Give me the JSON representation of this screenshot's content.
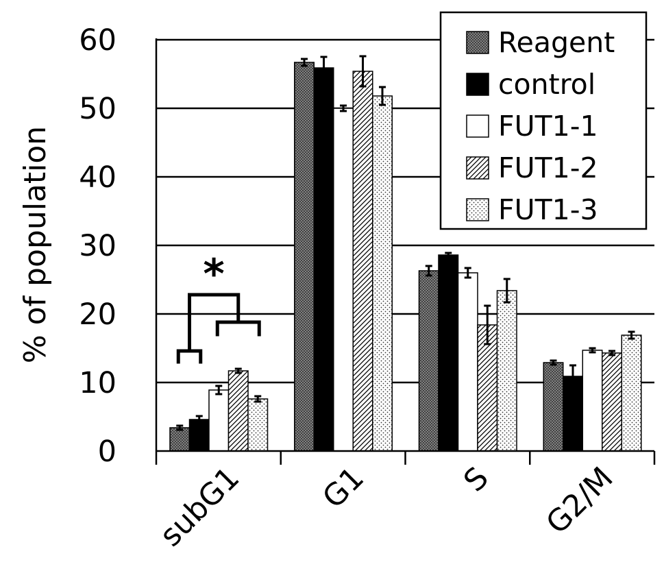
{
  "chart_data": {
    "type": "bar",
    "title": "",
    "xlabel": "",
    "ylabel": "% of population",
    "ylim": [
      0,
      60
    ],
    "yticks": [
      "0",
      "10",
      "20",
      "30",
      "40",
      "50",
      "60"
    ],
    "grid": true,
    "legend_position": "top-right",
    "categories": [
      "subG1",
      "G1",
      "S",
      "G2/M"
    ],
    "series": [
      {
        "name": "Reagent",
        "pattern": "crosshatch",
        "values": [
          3.4,
          56.7,
          26.3,
          12.9
        ],
        "errors": [
          0.3,
          0.5,
          0.7,
          0.3
        ]
      },
      {
        "name": "control",
        "pattern": "solid",
        "values": [
          4.6,
          55.9,
          28.6,
          10.9
        ],
        "errors": [
          0.5,
          1.6,
          0.3,
          1.6
        ]
      },
      {
        "name": "FUT1-1",
        "pattern": "white",
        "values": [
          8.9,
          50.0,
          26.0,
          14.7
        ],
        "errors": [
          0.6,
          0.4,
          0.7,
          0.3
        ]
      },
      {
        "name": "FUT1-2",
        "pattern": "diagonal",
        "values": [
          11.7,
          55.4,
          18.4,
          14.3
        ],
        "errors": [
          0.3,
          2.2,
          2.8,
          0.3
        ]
      },
      {
        "name": "FUT1-3",
        "pattern": "dots",
        "values": [
          7.6,
          51.8,
          23.4,
          16.9
        ],
        "errors": [
          0.4,
          1.3,
          1.7,
          0.5
        ]
      }
    ],
    "annotations": [
      {
        "text": "*",
        "type": "significance-bracket",
        "category": "subG1"
      }
    ]
  }
}
